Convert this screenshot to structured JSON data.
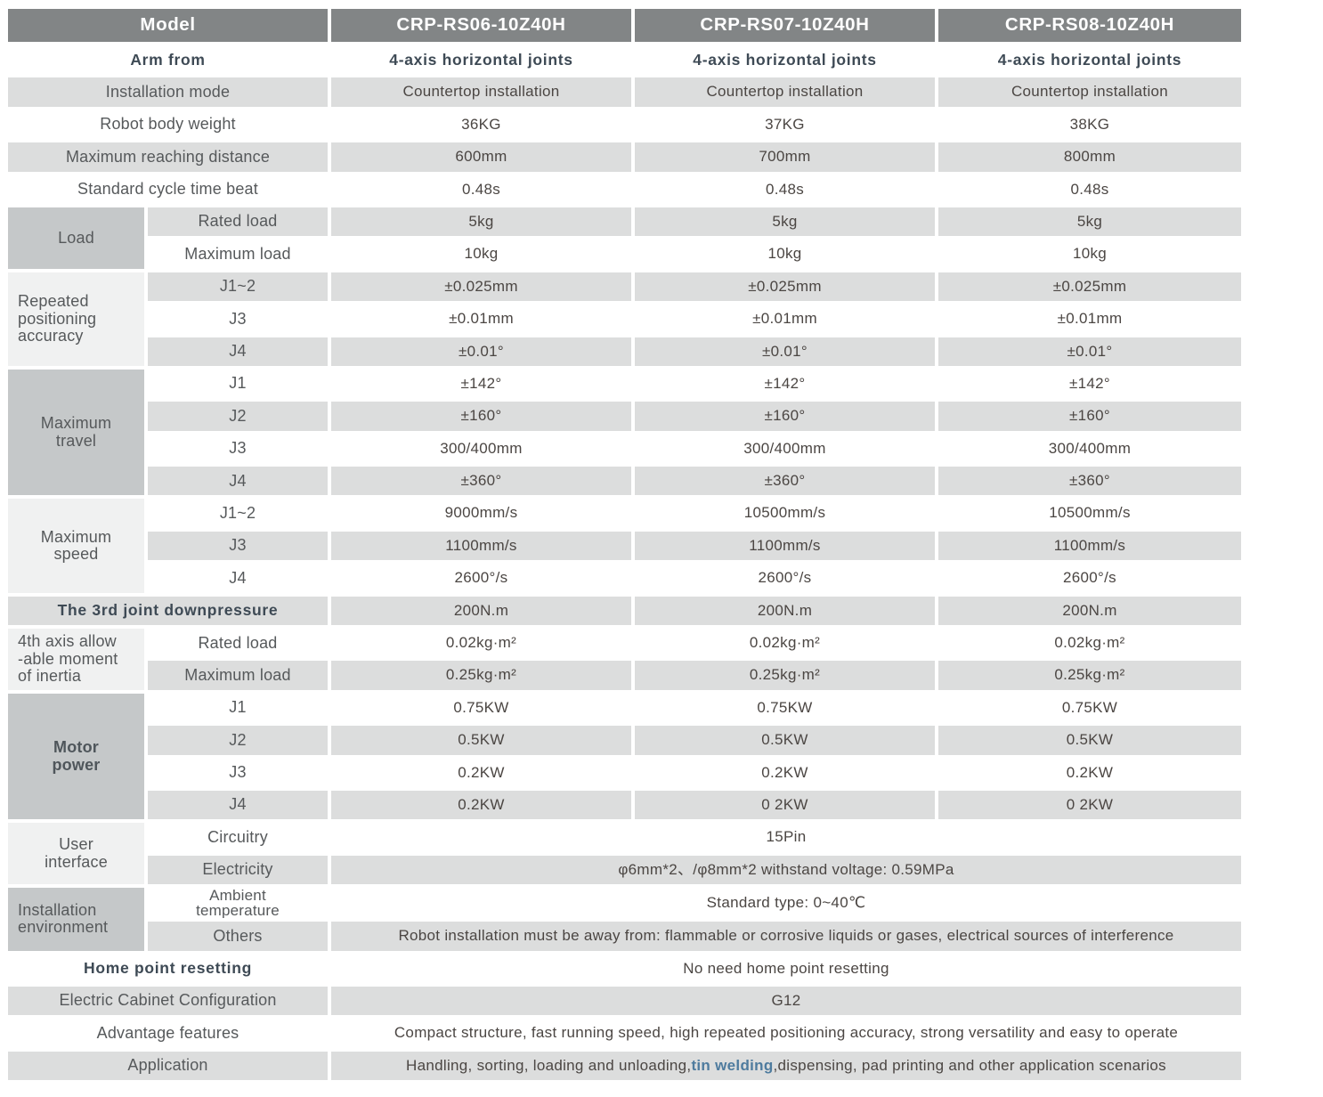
{
  "table": {
    "rows": [
      {
        "cls": "hrow",
        "cells": [
          {
            "name": "model-header-cell",
            "cls": "hdr",
            "colspan": 2,
            "text": "Model"
          },
          {
            "name": "model-name-cell",
            "cls": "hdr",
            "text": "CRP-RS06-10Z40H"
          },
          {
            "name": "model-name-cell",
            "cls": "hdr",
            "text": "CRP-RS07-10Z40H"
          },
          {
            "name": "model-name-cell",
            "cls": "hdr",
            "text": "CRP-RS08-10Z40H"
          }
        ]
      },
      {
        "cells": [
          {
            "name": "row-label-cell",
            "cls": "lab slate",
            "colspan": 2,
            "text": "Arm from"
          },
          {
            "name": "value-cell",
            "cls": "slate",
            "text": "4-axis horizontal joints"
          },
          {
            "name": "value-cell",
            "cls": "slate",
            "text": "4-axis horizontal joints"
          },
          {
            "name": "value-cell",
            "cls": "slate",
            "text": "4-axis horizontal joints"
          }
        ]
      },
      {
        "cells": [
          {
            "name": "row-label-cell",
            "cls": "lab g",
            "colspan": 2,
            "text": "Installation mode"
          },
          {
            "name": "value-cell",
            "cls": "g",
            "text": "Countertop installation"
          },
          {
            "name": "value-cell",
            "cls": "g",
            "text": "Countertop installation"
          },
          {
            "name": "value-cell",
            "cls": "g",
            "text": "Countertop installation"
          }
        ]
      },
      {
        "cells": [
          {
            "name": "row-label-cell",
            "cls": "lab",
            "colspan": 2,
            "text": "Robot body weight"
          },
          {
            "name": "value-cell",
            "text": "36KG"
          },
          {
            "name": "value-cell",
            "text": "37KG"
          },
          {
            "name": "value-cell",
            "text": "38KG"
          }
        ]
      },
      {
        "cells": [
          {
            "name": "row-label-cell",
            "cls": "lab g",
            "colspan": 2,
            "text": "Maximum reaching distance"
          },
          {
            "name": "value-cell",
            "cls": "g",
            "text": "600mm"
          },
          {
            "name": "value-cell",
            "cls": "g",
            "text": "700mm"
          },
          {
            "name": "value-cell",
            "cls": "g",
            "text": "800mm"
          }
        ]
      },
      {
        "cells": [
          {
            "name": "row-label-cell",
            "cls": "lab",
            "colspan": 2,
            "text": "Standard cycle time beat"
          },
          {
            "name": "value-cell",
            "text": "0.48s"
          },
          {
            "name": "value-cell",
            "text": "0.48s"
          },
          {
            "name": "value-cell",
            "text": "0.48s"
          }
        ]
      },
      {
        "cells": [
          {
            "name": "group-label-cell-load",
            "cls": "lab med",
            "rowspan": 2,
            "text": "Load"
          },
          {
            "name": "sub-label-cell",
            "cls": "lab g",
            "text": "Rated load"
          },
          {
            "name": "value-cell",
            "cls": "g",
            "text": "5kg"
          },
          {
            "name": "value-cell",
            "cls": "g",
            "text": "5kg"
          },
          {
            "name": "value-cell",
            "cls": "g",
            "text": "5kg"
          }
        ]
      },
      {
        "cells": [
          {
            "name": "sub-label-cell",
            "cls": "lab",
            "text": "Maximum load"
          },
          {
            "name": "value-cell",
            "text": "10kg"
          },
          {
            "name": "value-cell",
            "text": "10kg"
          },
          {
            "name": "value-cell",
            "text": "10kg"
          }
        ]
      },
      {
        "cells": [
          {
            "name": "group-label-cell-repeated-positioning-accuracy",
            "cls": "lab lt left",
            "rowspan": 3,
            "text": "Repeated\npositioning\naccuracy"
          },
          {
            "name": "sub-label-cell",
            "cls": "lab g",
            "text": "J1~2"
          },
          {
            "name": "value-cell",
            "cls": "g",
            "text": "±0.025mm"
          },
          {
            "name": "value-cell",
            "cls": "g",
            "text": "±0.025mm"
          },
          {
            "name": "value-cell",
            "cls": "g",
            "text": "±0.025mm"
          }
        ]
      },
      {
        "cells": [
          {
            "name": "sub-label-cell",
            "cls": "lab",
            "text": "J3"
          },
          {
            "name": "value-cell",
            "text": "±0.01mm"
          },
          {
            "name": "value-cell",
            "text": "±0.01mm"
          },
          {
            "name": "value-cell",
            "text": "±0.01mm"
          }
        ]
      },
      {
        "cells": [
          {
            "name": "sub-label-cell",
            "cls": "lab g",
            "text": "J4"
          },
          {
            "name": "value-cell",
            "cls": "g",
            "text": "±0.01°"
          },
          {
            "name": "value-cell",
            "cls": "g",
            "text": "±0.01°"
          },
          {
            "name": "value-cell",
            "cls": "g",
            "text": "±0.01°"
          }
        ]
      },
      {
        "cells": [
          {
            "name": "group-label-cell-maximum-travel",
            "cls": "lab med",
            "rowspan": 4,
            "text": "Maximum\ntravel"
          },
          {
            "name": "sub-label-cell",
            "cls": "lab",
            "text": "J1"
          },
          {
            "name": "value-cell",
            "text": "±142°"
          },
          {
            "name": "value-cell",
            "text": "±142°"
          },
          {
            "name": "value-cell",
            "text": "±142°"
          }
        ]
      },
      {
        "cells": [
          {
            "name": "sub-label-cell",
            "cls": "lab g",
            "text": "J2"
          },
          {
            "name": "value-cell",
            "cls": "g",
            "text": "±160°"
          },
          {
            "name": "value-cell",
            "cls": "g",
            "text": "±160°"
          },
          {
            "name": "value-cell",
            "cls": "g",
            "text": "±160°"
          }
        ]
      },
      {
        "cells": [
          {
            "name": "sub-label-cell",
            "cls": "lab",
            "text": "J3"
          },
          {
            "name": "value-cell",
            "text": "300/400mm"
          },
          {
            "name": "value-cell",
            "text": "300/400mm"
          },
          {
            "name": "value-cell",
            "text": "300/400mm"
          }
        ]
      },
      {
        "cells": [
          {
            "name": "sub-label-cell",
            "cls": "lab g",
            "text": "J4"
          },
          {
            "name": "value-cell",
            "cls": "g",
            "text": "±360°"
          },
          {
            "name": "value-cell",
            "cls": "g",
            "text": "±360°"
          },
          {
            "name": "value-cell",
            "cls": "g",
            "text": "±360°"
          }
        ]
      },
      {
        "cells": [
          {
            "name": "group-label-cell-maximum-speed",
            "cls": "lab lt",
            "rowspan": 3,
            "text": "Maximum\nspeed"
          },
          {
            "name": "sub-label-cell",
            "cls": "lab",
            "text": "J1~2"
          },
          {
            "name": "value-cell",
            "text": "9000mm/s"
          },
          {
            "name": "value-cell",
            "text": "10500mm/s"
          },
          {
            "name": "value-cell",
            "text": "10500mm/s"
          }
        ]
      },
      {
        "cells": [
          {
            "name": "sub-label-cell",
            "cls": "lab g",
            "text": "J3"
          },
          {
            "name": "value-cell",
            "cls": "g",
            "text": "1100mm/s"
          },
          {
            "name": "value-cell",
            "cls": "g",
            "text": "1100mm/s"
          },
          {
            "name": "value-cell",
            "cls": "g",
            "text": "1100mm/s"
          }
        ]
      },
      {
        "cells": [
          {
            "name": "sub-label-cell",
            "cls": "lab",
            "text": "J4"
          },
          {
            "name": "value-cell",
            "text": "2600°/s"
          },
          {
            "name": "value-cell",
            "text": "2600°/s"
          },
          {
            "name": "value-cell",
            "text": "2600°/s"
          }
        ]
      },
      {
        "cells": [
          {
            "name": "row-label-cell",
            "cls": "lab slate g",
            "colspan": 2,
            "text": "The 3rd joint downpressure"
          },
          {
            "name": "value-cell",
            "cls": "g",
            "text": "200N.m"
          },
          {
            "name": "value-cell",
            "cls": "g",
            "text": "200N.m"
          },
          {
            "name": "value-cell",
            "cls": "g",
            "text": "200N.m"
          }
        ]
      },
      {
        "cells": [
          {
            "name": "group-label-cell-4th-axis-moment-of-inertia",
            "cls": "lab lt left",
            "rowspan": 2,
            "text": "4th axis allow\n-able moment\nof inertia"
          },
          {
            "name": "sub-label-cell",
            "cls": "lab",
            "text": "Rated load"
          },
          {
            "name": "value-cell",
            "text": "0.02kg·m²"
          },
          {
            "name": "value-cell",
            "text": "0.02kg·m²"
          },
          {
            "name": "value-cell",
            "text": "0.02kg·m²"
          }
        ]
      },
      {
        "cells": [
          {
            "name": "sub-label-cell",
            "cls": "lab g",
            "text": "Maximum load"
          },
          {
            "name": "value-cell",
            "cls": "g",
            "text": "0.25kg·m²"
          },
          {
            "name": "value-cell",
            "cls": "g",
            "text": "0.25kg·m²"
          },
          {
            "name": "value-cell",
            "cls": "g",
            "text": "0.25kg·m²"
          }
        ]
      },
      {
        "cells": [
          {
            "name": "group-label-cell-motor-power",
            "cls": "lab med boldlab",
            "rowspan": 4,
            "text": "Motor\npower"
          },
          {
            "name": "sub-label-cell",
            "cls": "lab",
            "text": "J1"
          },
          {
            "name": "value-cell",
            "text": "0.75KW"
          },
          {
            "name": "value-cell",
            "text": "0.75KW"
          },
          {
            "name": "value-cell",
            "text": "0.75KW"
          }
        ]
      },
      {
        "cells": [
          {
            "name": "sub-label-cell",
            "cls": "lab g",
            "text": "J2"
          },
          {
            "name": "value-cell",
            "cls": "g",
            "text": "0.5KW"
          },
          {
            "name": "value-cell",
            "cls": "g",
            "text": "0.5KW"
          },
          {
            "name": "value-cell",
            "cls": "g",
            "text": "0.5KW"
          }
        ]
      },
      {
        "cells": [
          {
            "name": "sub-label-cell",
            "cls": "lab",
            "text": "J3"
          },
          {
            "name": "value-cell",
            "text": "0.2KW"
          },
          {
            "name": "value-cell",
            "text": "0.2KW"
          },
          {
            "name": "value-cell",
            "text": "0.2KW"
          }
        ]
      },
      {
        "cells": [
          {
            "name": "sub-label-cell",
            "cls": "lab g",
            "text": "J4"
          },
          {
            "name": "value-cell",
            "cls": "g",
            "text": "0.2KW"
          },
          {
            "name": "value-cell",
            "cls": "g",
            "text": "0 2KW"
          },
          {
            "name": "value-cell",
            "cls": "g",
            "text": "0 2KW"
          }
        ]
      },
      {
        "cells": [
          {
            "name": "group-label-cell-user-interface",
            "cls": "lab lt",
            "rowspan": 2,
            "text": "User\ninterface"
          },
          {
            "name": "sub-label-cell",
            "cls": "lab",
            "text": "Circuitry"
          },
          {
            "name": "span-value-cell",
            "colspan": 3,
            "text": "15Pin"
          }
        ]
      },
      {
        "cells": [
          {
            "name": "sub-label-cell",
            "cls": "lab g",
            "text": "Electricity"
          },
          {
            "name": "span-value-cell",
            "cls": "g",
            "colspan": 3,
            "text": "φ6mm*2、/φ8mm*2  withstand voltage: 0.59MPa"
          }
        ]
      },
      {
        "cells": [
          {
            "name": "group-label-cell-installation-environment",
            "cls": "lab med left",
            "rowspan": 2,
            "text": "Installation\nenvironment"
          },
          {
            "name": "sub-label-cell",
            "cls": "lab twol",
            "text": "Ambient\ntemperature"
          },
          {
            "name": "span-value-cell",
            "colspan": 3,
            "text": "Standard type:   0~40℃"
          }
        ]
      },
      {
        "cells": [
          {
            "name": "sub-label-cell",
            "cls": "lab g",
            "text": "Others"
          },
          {
            "name": "span-value-cell",
            "cls": "g",
            "colspan": 3,
            "text": "Robot installation must be away from: flammable or corrosive liquids or gases, electrical sources of interference"
          }
        ]
      },
      {
        "cells": [
          {
            "name": "row-label-cell",
            "cls": "lab slate",
            "colspan": 2,
            "text": "Home point resetting"
          },
          {
            "name": "span-value-cell",
            "colspan": 3,
            "text": "No need home point resetting"
          }
        ]
      },
      {
        "cells": [
          {
            "name": "row-label-cell",
            "cls": "lab g",
            "colspan": 2,
            "text": "Electric Cabinet Configuration"
          },
          {
            "name": "span-value-cell",
            "cls": "g",
            "colspan": 3,
            "text": "G12"
          }
        ]
      },
      {
        "cells": [
          {
            "name": "row-label-cell",
            "cls": "lab",
            "colspan": 2,
            "text": "Advantage features"
          },
          {
            "name": "span-value-cell",
            "colspan": 3,
            "text": "Compact structure, fast running speed, high repeated positioning accuracy, strong versatility and easy to operate"
          }
        ]
      },
      {
        "cells": [
          {
            "name": "row-label-cell",
            "cls": "lab g",
            "colspan": 2,
            "text": "Application"
          },
          {
            "name": "span-value-cell",
            "cls": "g",
            "colspan": 3,
            "rich": [
              {
                "t": "Handling, sorting, loading and unloading,",
                "b": false
              },
              {
                "t": "tin welding",
                "b": true
              },
              {
                "t": ",dispensing, pad printing and other application scenarios",
                "b": false
              }
            ]
          }
        ]
      }
    ]
  },
  "colors": {
    "header_bg": "#828586",
    "gray_row_bg": "#dcdddd",
    "group_medium_bg": "#c5c8c9",
    "group_light_bg": "#f0f1f1",
    "label_text": "#56595b",
    "value_text": "#4b4643",
    "slate_bold_text": "#3e4a55",
    "highlight_text": "#4e7b9e",
    "header_text": "#ffffff"
  }
}
